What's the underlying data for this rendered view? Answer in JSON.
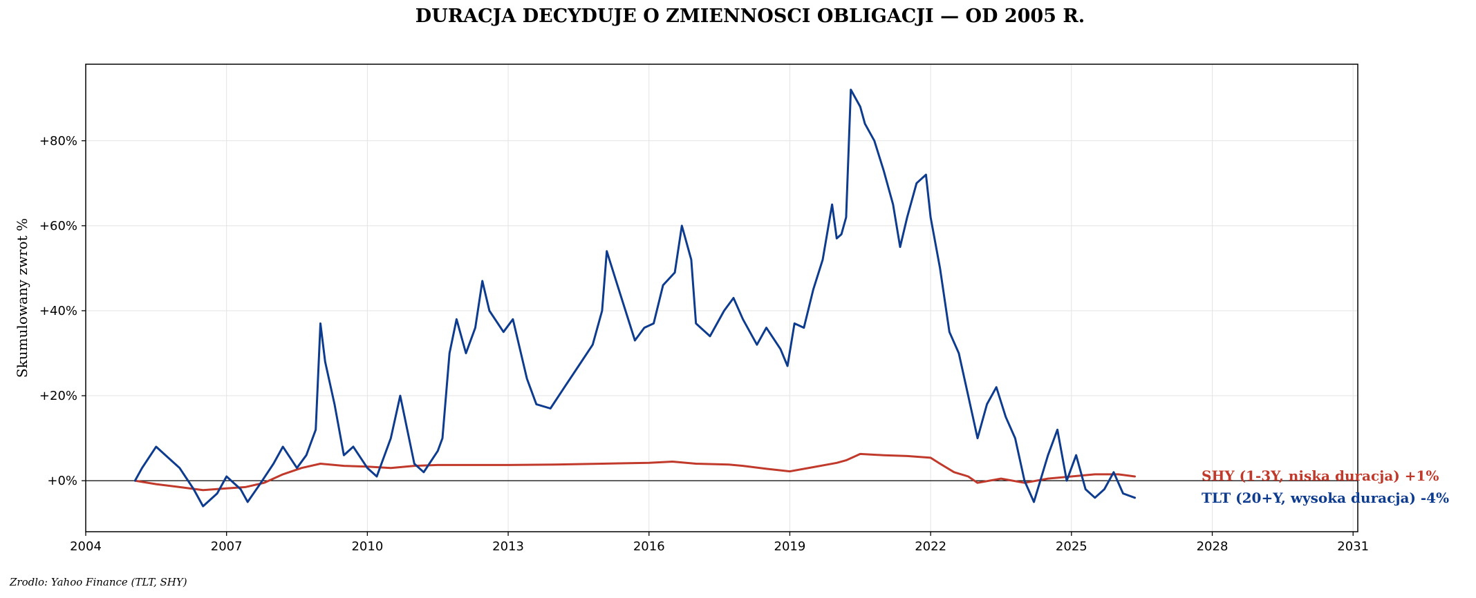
{
  "title": "DURACJA DECYDUJE O ZMIENNOSCI OBLIGACJI — OD 2005 R.",
  "source": "Zrodlo: Yahoo Finance (TLT, SHY)",
  "chart_data": {
    "type": "line",
    "title": "DURACJA DECYDUJE O ZMIENNOSCI OBLIGACJI — OD 2005 R.",
    "xlabel": "",
    "ylabel": "Skumulowany zwrot %",
    "xlim": [
      2004.0,
      2031.1
    ],
    "ylim": [
      -12,
      98
    ],
    "x_ticks": [
      2004,
      2007,
      2010,
      2013,
      2016,
      2019,
      2022,
      2025,
      2028,
      2031
    ],
    "y_ticks": [
      0,
      20,
      40,
      60,
      80
    ],
    "y_tick_labels": [
      "+0%",
      "+20%",
      "+40%",
      "+60%",
      "+80%"
    ],
    "grid": true,
    "zero_line": true,
    "series": [
      {
        "name": "SHY (1-3Y, niska duracja)",
        "end_label": "SHY (1-3Y, niska duracja)  +1%",
        "color": "#c0392b",
        "x": [
          2005.05,
          2005.5,
          2006.0,
          2006.5,
          2007.0,
          2007.4,
          2007.8,
          2008.2,
          2008.6,
          2009.0,
          2009.5,
          2010.0,
          2010.5,
          2011.0,
          2011.5,
          2012.0,
          2013.0,
          2014.0,
          2015.0,
          2016.0,
          2016.5,
          2017.0,
          2017.7,
          2018.0,
          2018.5,
          2019.0,
          2019.5,
          2020.0,
          2020.2,
          2020.5,
          2021.0,
          2021.5,
          2022.0,
          2022.2,
          2022.5,
          2022.8,
          2023.0,
          2023.5,
          2024.0,
          2024.5,
          2025.0,
          2025.5,
          2026.0,
          2026.35
        ],
        "y": [
          0.0,
          -0.8,
          -1.5,
          -2.2,
          -1.8,
          -1.5,
          -0.5,
          1.5,
          3.0,
          4.0,
          3.5,
          3.3,
          3.0,
          3.5,
          3.7,
          3.7,
          3.7,
          3.8,
          4.0,
          4.2,
          4.5,
          4.0,
          3.8,
          3.5,
          2.8,
          2.2,
          3.2,
          4.2,
          4.8,
          6.3,
          6.0,
          5.8,
          5.4,
          4.0,
          2.0,
          1.0,
          -0.5,
          0.5,
          -0.5,
          0.5,
          1.0,
          1.5,
          1.5,
          1.0
        ]
      },
      {
        "name": "TLT (20+Y, wysoka duracja)",
        "end_label": "TLT (20+Y, wysoka duracja)  -4%",
        "color": "#0d3b8e",
        "x": [
          2005.05,
          2005.2,
          2005.5,
          2005.7,
          2006.0,
          2006.3,
          2006.5,
          2006.8,
          2007.0,
          2007.3,
          2007.45,
          2007.7,
          2008.0,
          2008.2,
          2008.5,
          2008.7,
          2008.9,
          2009.0,
          2009.1,
          2009.3,
          2009.5,
          2009.7,
          2010.0,
          2010.2,
          2010.5,
          2010.7,
          2010.85,
          2011.0,
          2011.2,
          2011.5,
          2011.6,
          2011.75,
          2011.9,
          2012.1,
          2012.3,
          2012.45,
          2012.6,
          2012.9,
          2013.1,
          2013.4,
          2013.6,
          2013.9,
          2014.2,
          2014.5,
          2014.8,
          2015.0,
          2015.1,
          2015.3,
          2015.5,
          2015.7,
          2015.9,
          2016.1,
          2016.3,
          2016.55,
          2016.7,
          2016.9,
          2017.0,
          2017.3,
          2017.6,
          2017.8,
          2018.0,
          2018.3,
          2018.5,
          2018.8,
          2018.95,
          2019.1,
          2019.3,
          2019.5,
          2019.7,
          2019.9,
          2020.0,
          2020.1,
          2020.2,
          2020.3,
          2020.5,
          2020.6,
          2020.8,
          2021.0,
          2021.2,
          2021.35,
          2021.5,
          2021.7,
          2021.9,
          2022.0,
          2022.2,
          2022.4,
          2022.6,
          2022.8,
          2023.0,
          2023.2,
          2023.4,
          2023.6,
          2023.8,
          2024.0,
          2024.2,
          2024.5,
          2024.7,
          2024.9,
          2025.1,
          2025.3,
          2025.5,
          2025.7,
          2025.9,
          2026.1,
          2026.35
        ],
        "y": [
          0.0,
          3.0,
          8.0,
          6.0,
          3.0,
          -2.0,
          -6.0,
          -3.0,
          1.0,
          -2.0,
          -5.0,
          -1.0,
          4.0,
          8.0,
          3.0,
          6.0,
          12.0,
          37.0,
          28.0,
          18.0,
          6.0,
          8.0,
          3.0,
          1.0,
          10.0,
          20.0,
          12.0,
          4.0,
          2.0,
          7.0,
          10.0,
          30.0,
          38.0,
          30.0,
          36.0,
          47.0,
          40.0,
          35.0,
          38.0,
          24.0,
          18.0,
          17.0,
          22.0,
          27.0,
          32.0,
          40.0,
          54.0,
          47.0,
          40.0,
          33.0,
          36.0,
          37.0,
          46.0,
          49.0,
          60.0,
          52.0,
          37.0,
          34.0,
          40.0,
          43.0,
          38.0,
          32.0,
          36.0,
          31.0,
          27.0,
          37.0,
          36.0,
          45.0,
          52.0,
          65.0,
          57.0,
          58.0,
          62.0,
          92.0,
          88.0,
          84.0,
          80.0,
          73.0,
          65.0,
          55.0,
          62.0,
          70.0,
          72.0,
          62.0,
          50.0,
          35.0,
          30.0,
          20.0,
          10.0,
          18.0,
          22.0,
          15.0,
          10.0,
          0.0,
          -5.0,
          6.0,
          12.0,
          0.0,
          6.0,
          -2.0,
          -4.0,
          -2.0,
          2.0,
          -3.0,
          -4.0
        ]
      }
    ]
  }
}
